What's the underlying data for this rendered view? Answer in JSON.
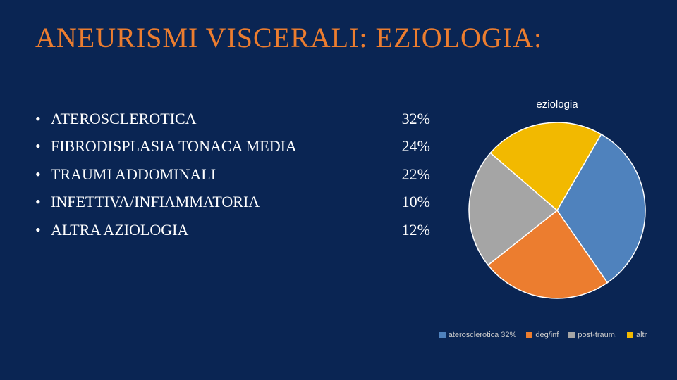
{
  "title": "ANEURISMI VISCERALI: EZIOLOGIA:",
  "bullets": [
    {
      "label": "ATEROSCLEROTICA",
      "pct": "32%"
    },
    {
      "label": "FIBRODISPLASIA  TONACA MEDIA",
      "pct": "24%"
    },
    {
      "label": "TRAUMI ADDOMINALI",
      "pct": "22%"
    },
    {
      "label": "INFETTIVA/INFIAMMATORIA",
      "pct": "10%"
    },
    {
      "label": " ALTRA AZIOLOGIA",
      "pct": "12%"
    }
  ],
  "chart": {
    "type": "pie",
    "title": "eziologia",
    "background_color": "#0a2553",
    "title_color": "#ffffff",
    "title_fontsize": 15,
    "slices": [
      {
        "label": "aterosclerotica 32%",
        "value": 32,
        "color": "#4f82bd"
      },
      {
        "label": "deg/inf",
        "value": 24,
        "color": "#ec7d2f"
      },
      {
        "label": "post-traum.",
        "value": 22,
        "color": "#a5a5a5"
      },
      {
        "label": "altr",
        "value": 22,
        "color": "#f2b900"
      }
    ],
    "start_angle_deg": -60,
    "radius": 125,
    "stroke_color": "#ffffff",
    "stroke_width": 1.5,
    "legend_fontsize": 11,
    "legend_text_color": "#c9c9c9",
    "legend_swatch_size": 9
  },
  "colors": {
    "background": "#0a2553",
    "title": "#ec7d2f",
    "body_text": "#ffffff"
  },
  "typography": {
    "title_fontsize": 40,
    "body_fontsize": 22
  }
}
